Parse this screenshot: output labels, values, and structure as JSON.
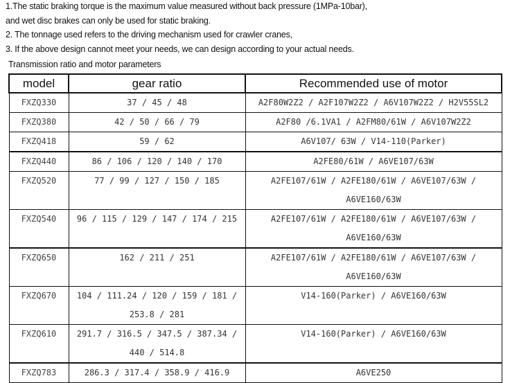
{
  "notes": [
    "1.The static braking torque is the maximum value measured without back pressure (1MPa-10bar),",
    "and wet disc brakes can only be used for static braking.",
    "2. The tonnage used refers to the driving mechanism used for crawler cranes,",
    "3. If the above design cannot meet your needs, we can design according to your actual needs."
  ],
  "caption": "Transmission ratio and motor parameters",
  "table": {
    "headers": [
      "model",
      "gear ratio",
      "Recommended use of motor"
    ],
    "rows": [
      {
        "model": "FXZQ330",
        "gear": "37 / 45 / 48",
        "motor": "A2F80W2Z2 / A2F107W2Z2 / A6V107W2Z2 / H2V55SL2"
      },
      {
        "model": "FXZQ380",
        "gear": "42 / 50 / 66 / 79",
        "motor": "A2F80 /6.1VA1 / A2FM80/61W / A6V107W2Z2"
      },
      {
        "model": "FXZQ418",
        "gear": "59 / 62",
        "motor": "A6V107/ 63W / V14-110(Parker)"
      },
      {
        "model": "FXZQ440",
        "gear": "86 / 106 / 120 / 140 / 170",
        "motor": "A2FE80/61W / A6VE107/63W"
      },
      {
        "model": "FXZQ520",
        "gear": "77 / 99 / 127 / 150 / 185",
        "motor": "A2FE107/61W / A2FE180/61W / A6VE107/63W / A6VE160/63W"
      },
      {
        "model": "FXZQ540",
        "gear": "96 / 115 / 129 / 147 / 174 / 215",
        "motor": "A2FE107/61W / A2FE180/61W / A6VE107/63W / A6VE160/63W"
      },
      {
        "model": "FXZQ650",
        "gear": "162 / 211 / 251",
        "motor": "A2FE107/61W / A2FE180/61W / A6VE107/63W / A6VE160/63W"
      },
      {
        "model": "FXZQ670",
        "gear": "104 / 111.24 / 120 / 159 / 181 / 253.8 / 281",
        "motor": "V14-160(Parker) / A6VE160/63W"
      },
      {
        "model": "FXZQ610",
        "gear": "291.7 / 316.5 / 347.5 / 387.34 / 440 / 514.8",
        "motor": "V14-160(Parker) / A6VE160/63W"
      },
      {
        "model": "FXZQ783",
        "gear": "286.3 / 317.4 / 358.9 / 416.9",
        "motor": "A6VE250"
      }
    ]
  }
}
